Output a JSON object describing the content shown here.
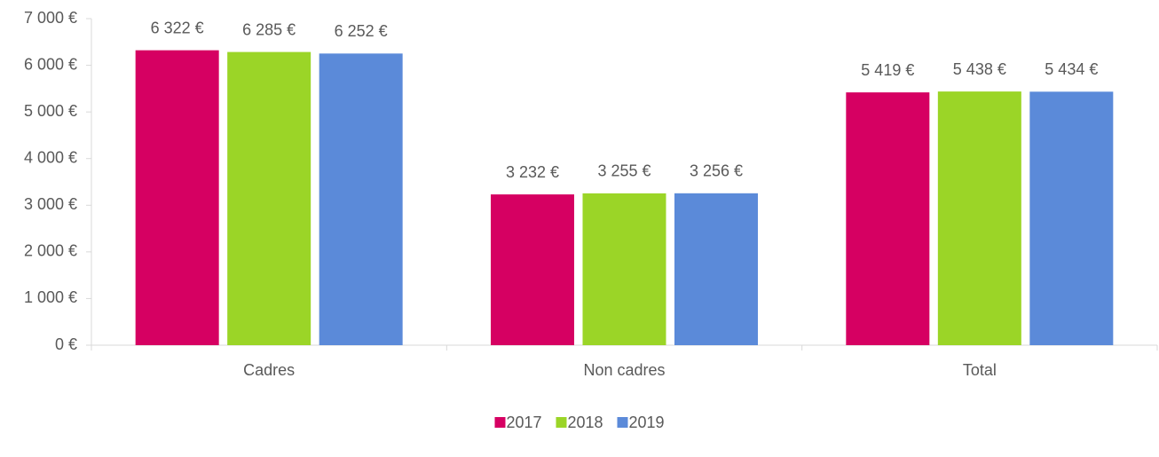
{
  "chart_data": {
    "type": "bar",
    "categories": [
      "Cadres",
      "Non cadres",
      "Total"
    ],
    "series": [
      {
        "name": "2017",
        "color": "#d60062",
        "values": [
          6322,
          3232,
          5419
        ],
        "value_labels": [
          "6 322 €",
          "3 232 €",
          "5 419 €"
        ]
      },
      {
        "name": "2018",
        "color": "#9bd527",
        "values": [
          6285,
          3255,
          5438
        ],
        "value_labels": [
          "6 285 €",
          "3 255 €",
          "5 438 €"
        ]
      },
      {
        "name": "2019",
        "color": "#5b8ad9",
        "values": [
          6252,
          3256,
          5434
        ],
        "value_labels": [
          "6 252 €",
          "3 256 €",
          "5 434 €"
        ]
      }
    ],
    "ylim": [
      0,
      7000
    ],
    "yticks": [
      {
        "value": 0,
        "label": "0 €"
      },
      {
        "value": 1000,
        "label": "1 000 €"
      },
      {
        "value": 2000,
        "label": "2 000 €"
      },
      {
        "value": 3000,
        "label": "3 000 €"
      },
      {
        "value": 4000,
        "label": "4 000 €"
      },
      {
        "value": 5000,
        "label": "5 000 €"
      },
      {
        "value": 6000,
        "label": "6 000 €"
      },
      {
        "value": 7000,
        "label": "7 000 €"
      }
    ],
    "grid": false,
    "legend": "bottom"
  }
}
